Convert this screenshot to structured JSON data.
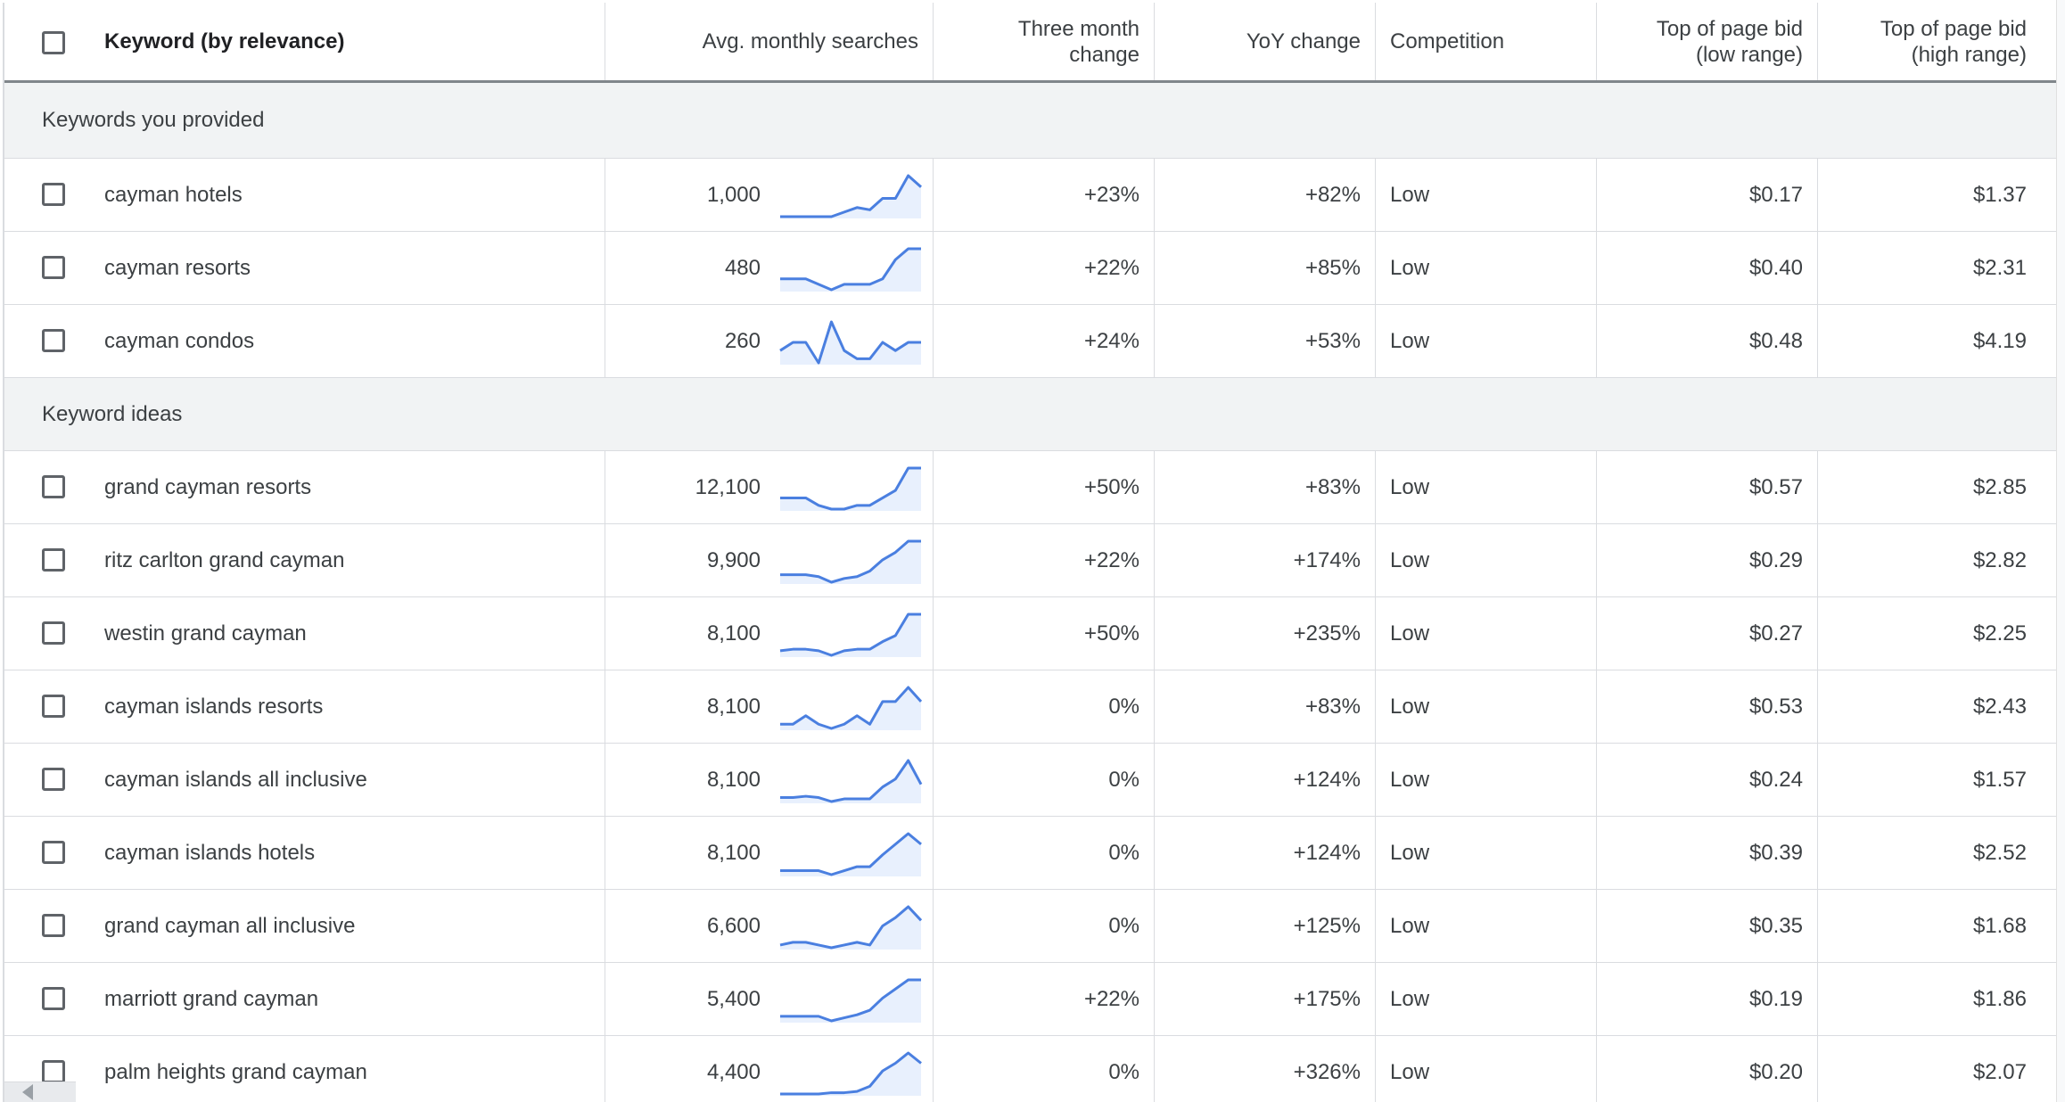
{
  "header": {
    "keyword": "Keyword (by relevance)",
    "avg_searches": "Avg. monthly searches",
    "three_month_l1": "Three month",
    "three_month_l2": "change",
    "yoy": "YoY change",
    "competition": "Competition",
    "bid_low_l1": "Top of page bid",
    "bid_low_l2": "(low range)",
    "bid_high_l1": "Top of page bid",
    "bid_high_l2": "(high range)"
  },
  "colors": {
    "sparkline": "#4a7fe0",
    "sparkline_fill": "#e8f0fd",
    "section_bg": "#f1f3f4"
  },
  "sections": [
    {
      "title": "Keywords you provided",
      "rows": [
        {
          "keyword": "cayman hotels",
          "searches": "1,000",
          "three_month": "+23%",
          "yoy": "+82%",
          "competition": "Low",
          "bid_low": "$0.17",
          "bid_high": "$1.37",
          "trend": [
            0,
            0,
            0,
            0,
            0,
            2,
            4,
            3,
            8,
            8,
            18,
            13
          ]
        },
        {
          "keyword": "cayman resorts",
          "searches": "480",
          "three_month": "+22%",
          "yoy": "+85%",
          "competition": "Low",
          "bid_low": "$0.40",
          "bid_high": "$2.31",
          "trend": [
            5,
            5,
            5,
            3,
            1,
            3,
            3,
            3,
            5,
            12,
            16,
            16
          ]
        },
        {
          "keyword": "cayman condos",
          "searches": "260",
          "three_month": "+24%",
          "yoy": "+53%",
          "competition": "Low",
          "bid_low": "$0.48",
          "bid_high": "$4.19",
          "trend": [
            3,
            5,
            5,
            0,
            10,
            3,
            1,
            1,
            5,
            3,
            5,
            5
          ]
        }
      ]
    },
    {
      "title": "Keyword ideas",
      "rows": [
        {
          "keyword": "grand cayman resorts",
          "searches": "12,100",
          "three_month": "+50%",
          "yoy": "+83%",
          "competition": "Low",
          "bid_low": "$0.57",
          "bid_high": "$2.85",
          "trend": [
            4,
            4,
            4,
            2,
            1,
            1,
            2,
            2,
            4,
            6,
            12,
            12
          ]
        },
        {
          "keyword": "ritz carlton grand cayman",
          "searches": "9,900",
          "three_month": "+22%",
          "yoy": "+174%",
          "competition": "Low",
          "bid_low": "$0.29",
          "bid_high": "$2.82",
          "trend": [
            2,
            2,
            2,
            1.5,
            0,
            1,
            1.5,
            3,
            6,
            8,
            11,
            11
          ]
        },
        {
          "keyword": "westin grand cayman",
          "searches": "8,100",
          "three_month": "+50%",
          "yoy": "+235%",
          "competition": "Low",
          "bid_low": "$0.27",
          "bid_high": "$2.25",
          "trend": [
            2,
            2.5,
            2.5,
            2,
            0.5,
            2,
            2.5,
            2.5,
            5,
            7,
            14,
            14
          ]
        },
        {
          "keyword": "cayman islands resorts",
          "searches": "8,100",
          "three_month": "0%",
          "yoy": "+83%",
          "competition": "Low",
          "bid_low": "$0.53",
          "bid_high": "$2.43",
          "trend": [
            2,
            2,
            5,
            2,
            0.5,
            2,
            5,
            2,
            10,
            10,
            15,
            10
          ]
        },
        {
          "keyword": "cayman islands all inclusive",
          "searches": "8,100",
          "three_month": "0%",
          "yoy": "+124%",
          "competition": "Low",
          "bid_low": "$0.24",
          "bid_high": "$1.57",
          "trend": [
            2,
            2,
            2.5,
            2,
            0.5,
            1.5,
            1.5,
            1.5,
            6,
            9,
            16,
            7
          ]
        },
        {
          "keyword": "cayman islands hotels",
          "searches": "8,100",
          "three_month": "0%",
          "yoy": "+124%",
          "competition": "Low",
          "bid_low": "$0.39",
          "bid_high": "$2.52",
          "trend": [
            2,
            2,
            2,
            2,
            0.5,
            2,
            3.5,
            3.5,
            8,
            12,
            16,
            12
          ]
        },
        {
          "keyword": "grand cayman all inclusive",
          "searches": "6,600",
          "three_month": "0%",
          "yoy": "+125%",
          "competition": "Low",
          "bid_low": "$0.35",
          "bid_high": "$1.68",
          "trend": [
            2,
            3,
            3,
            2,
            1,
            2,
            3,
            2,
            9,
            12,
            16,
            11
          ]
        },
        {
          "keyword": "marriott grand cayman",
          "searches": "5,400",
          "three_month": "+22%",
          "yoy": "+175%",
          "competition": "Low",
          "bid_low": "$0.19",
          "bid_high": "$1.86",
          "trend": [
            2,
            2,
            2,
            2,
            0.5,
            1.5,
            2.5,
            4,
            8,
            11,
            14,
            14
          ]
        },
        {
          "keyword": "palm heights grand cayman",
          "searches": "4,400",
          "three_month": "0%",
          "yoy": "+326%",
          "competition": "Low",
          "bid_low": "$0.20",
          "bid_high": "$2.07",
          "trend": [
            0,
            0,
            0,
            0,
            0.5,
            0.5,
            1,
            3,
            9,
            12,
            16,
            12
          ]
        }
      ]
    }
  ]
}
